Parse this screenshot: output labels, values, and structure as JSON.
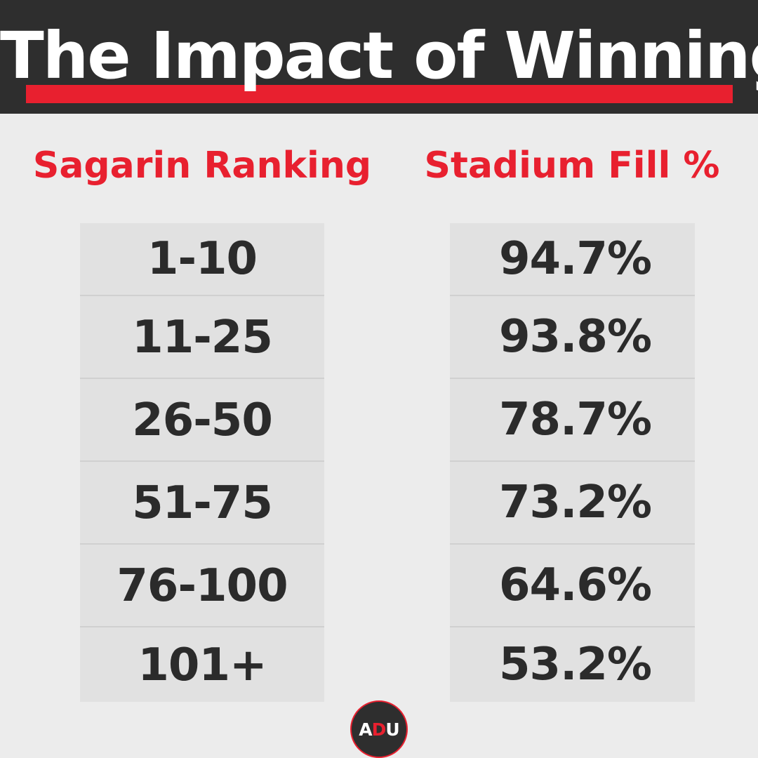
{
  "header": {
    "title": "The Impact of Winning"
  },
  "columns": {
    "left": "Sagarin Ranking",
    "right": "Stadium Fill %"
  },
  "rows": [
    {
      "ranking": "1-10",
      "fill": "94.7%"
    },
    {
      "ranking": "11-25",
      "fill": "93.8%"
    },
    {
      "ranking": "26-50",
      "fill": "78.7%"
    },
    {
      "ranking": "51-75",
      "fill": "73.2%"
    },
    {
      "ranking": "76-100",
      "fill": "64.6%"
    },
    {
      "ranking": "101+",
      "fill": "53.2%"
    }
  ],
  "logo": {
    "a": "A",
    "d": "D",
    "u": "U"
  },
  "colors": {
    "accent": "#e8202f",
    "header_bg": "#2e2e2e",
    "text": "#2b2b2b",
    "background": "#ececec",
    "cell_bg": "#e1e1e1"
  },
  "chart_data": {
    "type": "table",
    "columns": [
      "Sagarin Ranking",
      "Stadium Fill %"
    ],
    "rows": [
      [
        "1-10",
        "94.7%"
      ],
      [
        "11-25",
        "93.8%"
      ],
      [
        "26-50",
        "78.7%"
      ],
      [
        "51-75",
        "73.2%"
      ],
      [
        "76-100",
        "64.6%"
      ],
      [
        "101+",
        "53.2%"
      ]
    ],
    "title": "The Impact of Winning"
  }
}
